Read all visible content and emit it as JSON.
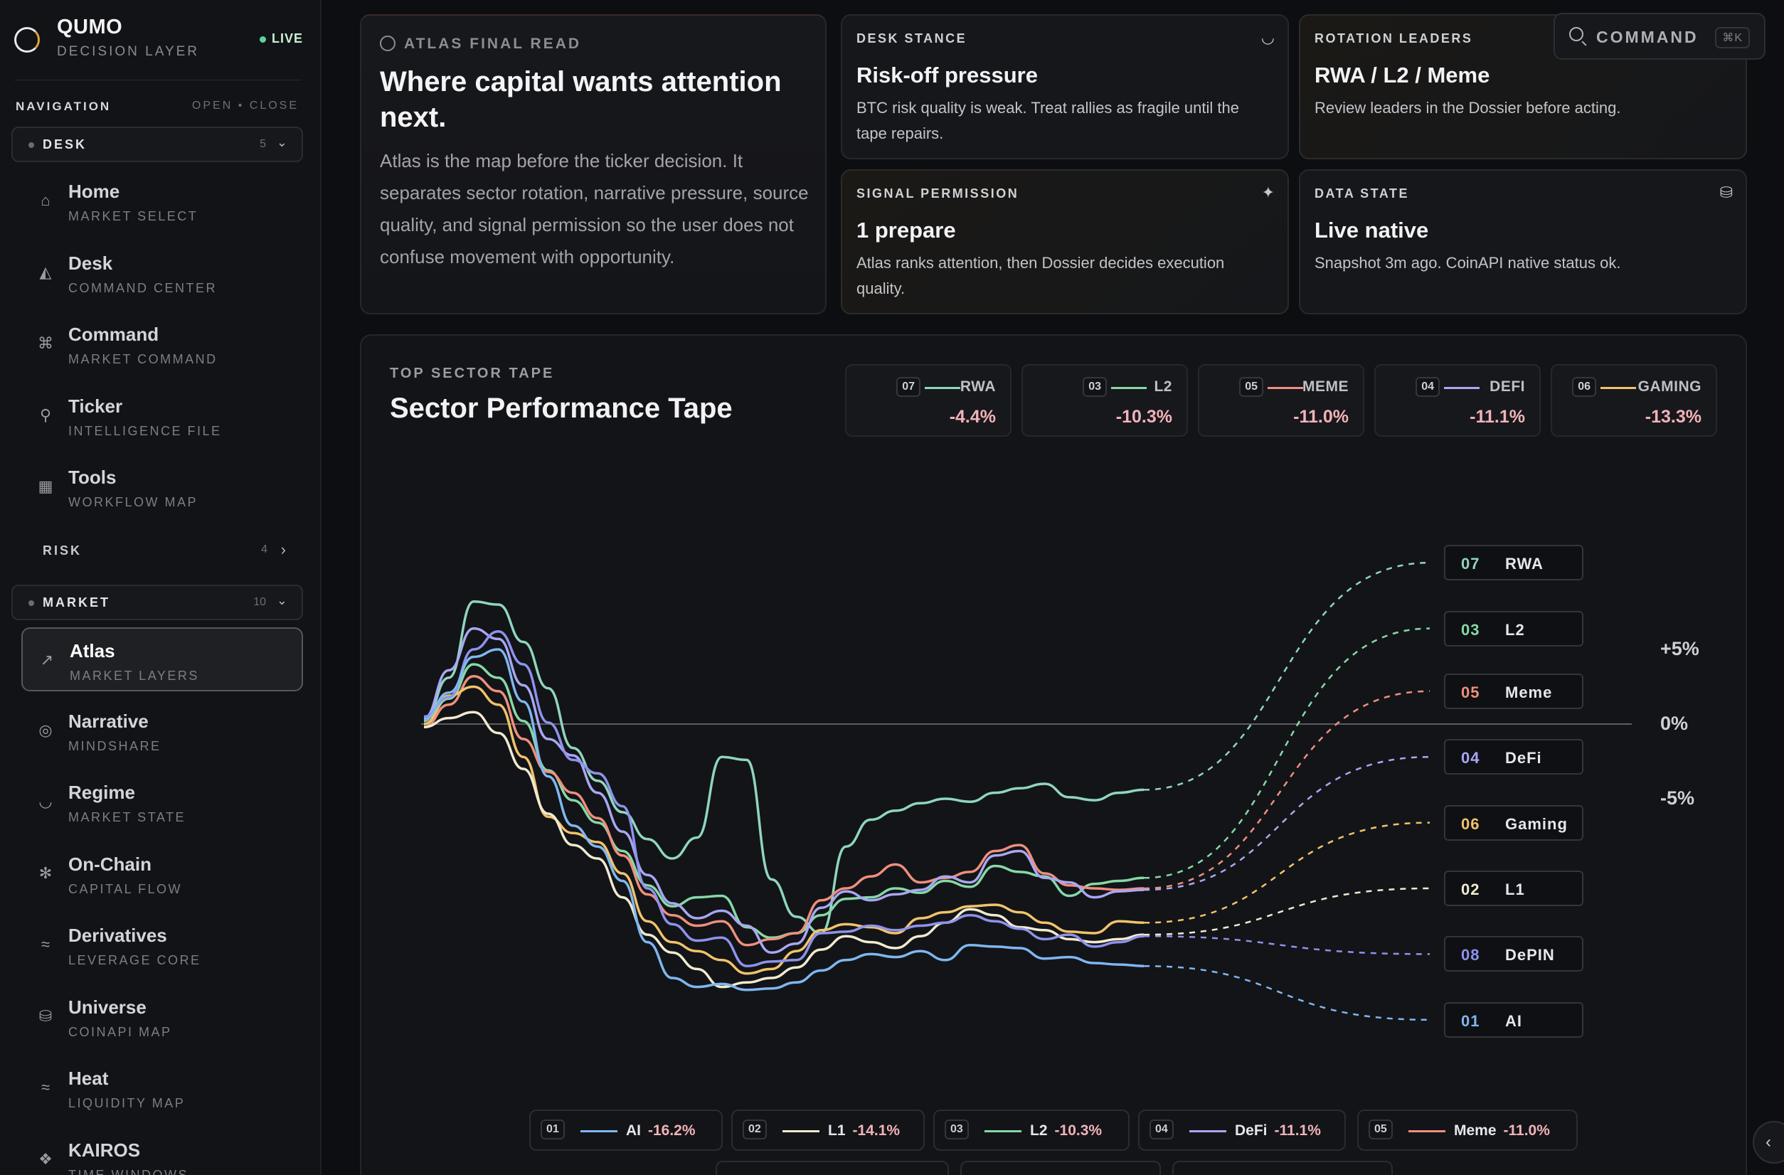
{
  "brand": {
    "name": "QUMO",
    "subtitle": "DECISION LAYER",
    "status": "LIVE"
  },
  "nav": {
    "title": "NAVIGATION",
    "open_close": "OPEN • CLOSE",
    "groups": {
      "desk": {
        "label": "DESK",
        "count": "5"
      },
      "risk": {
        "label": "RISK",
        "count": "4"
      },
      "market": {
        "label": "MARKET",
        "count": "10"
      }
    },
    "desk_items": [
      {
        "label": "Home",
        "sub": "MARKET SELECT",
        "icon": "home-icon"
      },
      {
        "label": "Desk",
        "sub": "COMMAND CENTER",
        "icon": "inbox-icon"
      },
      {
        "label": "Command",
        "sub": "MARKET COMMAND",
        "icon": "command-icon"
      },
      {
        "label": "Ticker",
        "sub": "INTELLIGENCE FILE",
        "icon": "search-icon"
      },
      {
        "label": "Tools",
        "sub": "WORKFLOW MAP",
        "icon": "grid-icon"
      }
    ],
    "market_items": [
      {
        "label": "Atlas",
        "sub": "MARKET LAYERS",
        "icon": "chart-line-icon",
        "active": true
      },
      {
        "label": "Narrative",
        "sub": "MINDSHARE",
        "icon": "radar-icon"
      },
      {
        "label": "Regime",
        "sub": "MARKET STATE",
        "icon": "gauge-icon"
      },
      {
        "label": "On-Chain",
        "sub": "CAPITAL FLOW",
        "icon": "antenna-icon"
      },
      {
        "label": "Derivatives",
        "sub": "LEVERAGE CORE",
        "icon": "waves-icon"
      },
      {
        "label": "Universe",
        "sub": "COINAPI MAP",
        "icon": "database-icon"
      },
      {
        "label": "Heat",
        "sub": "LIQUIDITY MAP",
        "icon": "waves-icon"
      },
      {
        "label": "KAIROS",
        "sub": "TIME WINDOWS",
        "icon": "target-icon"
      }
    ]
  },
  "hero": {
    "kicker": "ATLAS FINAL READ",
    "title": "Where capital wants attention next.",
    "body": "Atlas is the map before the ticker decision. It separates sector rotation, narrative pressure, source quality, and signal permission so the user does not confuse movement with opportunity."
  },
  "cards": {
    "desk_stance": {
      "label": "DESK STANCE",
      "title": "Risk-off pressure",
      "text": "BTC risk quality is weak. Treat rallies as fragile until the tape repairs.",
      "icon": "gauge-icon"
    },
    "rotation": {
      "label": "ROTATION LEADERS",
      "title": "RWA / L2 / Meme",
      "text": "Review leaders in the Dossier before acting."
    },
    "signal": {
      "label": "SIGNAL PERMISSION",
      "title": "1 prepare",
      "text": "Atlas ranks attention, then Dossier decides execution quality.",
      "icon": "sparkles-icon"
    },
    "data_state": {
      "label": "DATA STATE",
      "title": "Live native",
      "text": "Snapshot 3m ago. CoinAPI native status ok.",
      "icon": "database-icon"
    }
  },
  "command": {
    "label": "COMMAND",
    "shortcut": "⌘K"
  },
  "tape": {
    "kicker": "TOP SECTOR TAPE",
    "title": "Sector Performance Tape",
    "leaders": [
      {
        "num": "07",
        "name": "RWA",
        "value": "-4.4%",
        "color": "#8fd6bd"
      },
      {
        "num": "03",
        "name": "L2",
        "value": "-10.3%",
        "color": "#86d9a6"
      },
      {
        "num": "05",
        "name": "MEME",
        "value": "-11.0%",
        "color": "#ef8f7e"
      },
      {
        "num": "04",
        "name": "DEFI",
        "value": "-11.1%",
        "color": "#a9a7f3"
      },
      {
        "num": "06",
        "name": "GAMING",
        "value": "-13.3%",
        "color": "#f1c36b"
      }
    ]
  },
  "chart_data": {
    "type": "line",
    "y_ticks": [
      "+5%",
      "0%",
      "-5%"
    ],
    "series": [
      {
        "num": "07",
        "name": "RWA",
        "color": "#8fd6bd",
        "values": [
          0.2,
          3.1,
          8.2,
          8.0,
          5.5,
          2.4,
          -1.6,
          -3.8,
          -5.9,
          -7.7,
          -9.0,
          -7.6,
          -2.2,
          -2.4,
          -10.4,
          -12.9,
          -14.0,
          -8.2,
          -6.4,
          -5.8,
          -5.3,
          -5.0,
          -5.2,
          -4.6,
          -4.3,
          -4.0,
          -4.9,
          -5.1,
          -4.6,
          -4.4
        ],
        "proj_end": 10.8
      },
      {
        "num": "03",
        "name": "L2",
        "color": "#86d9a6",
        "values": [
          0.0,
          1.7,
          4.0,
          3.1,
          0.2,
          -3.1,
          -5.1,
          -6.6,
          -8.5,
          -10.8,
          -12.2,
          -11.6,
          -11.5,
          -13.6,
          -14.3,
          -14.0,
          -12.8,
          -11.7,
          -11.6,
          -11.0,
          -11.3,
          -10.5,
          -10.9,
          -9.5,
          -9.9,
          -10.2,
          -11.5,
          -10.7,
          -10.5,
          -10.3
        ],
        "proj_end": 6.4
      },
      {
        "num": "05",
        "name": "Meme",
        "color": "#ef8f7e",
        "values": [
          -0.2,
          1.3,
          3.2,
          2.2,
          -1.0,
          -3.2,
          -4.6,
          -6.3,
          -8.8,
          -11.4,
          -12.8,
          -13.5,
          -13.2,
          -14.8,
          -14.4,
          -14.0,
          -11.8,
          -11.0,
          -10.2,
          -9.4,
          -10.6,
          -10.3,
          -9.9,
          -8.5,
          -8.1,
          -10.0,
          -10.8,
          -11.0,
          -11.1,
          -11.0
        ],
        "proj_end": 2.2
      },
      {
        "num": "04",
        "name": "DeFi",
        "color": "#a9a7f3",
        "values": [
          0.4,
          3.6,
          6.4,
          5.7,
          2.6,
          -1.0,
          -2.1,
          -4.6,
          -7.2,
          -10.1,
          -12.0,
          -13.0,
          -12.5,
          -13.5,
          -15.3,
          -14.7,
          -12.3,
          -11.2,
          -11.8,
          -11.4,
          -11.1,
          -10.2,
          -10.6,
          -8.8,
          -8.5,
          -10.3,
          -10.6,
          -11.6,
          -11.2,
          -11.1
        ],
        "proj_end": -2.2
      },
      {
        "num": "06",
        "name": "Gaming",
        "color": "#f1c36b",
        "values": [
          0.0,
          1.9,
          2.5,
          1.3,
          -2.2,
          -6.2,
          -7.3,
          -7.9,
          -10.0,
          -13.2,
          -14.6,
          -15.2,
          -15.8,
          -16.7,
          -16.4,
          -15.2,
          -13.8,
          -13.4,
          -13.6,
          -14.0,
          -13.0,
          -12.6,
          -12.2,
          -12.1,
          -12.6,
          -13.3,
          -13.9,
          -14.0,
          -13.2,
          -13.3
        ],
        "proj_end": -6.6
      },
      {
        "num": "02",
        "name": "L1",
        "color": "#f0ead0",
        "values": [
          -0.2,
          0.4,
          0.8,
          -0.6,
          -3.0,
          -6.0,
          -8.1,
          -9.0,
          -11.6,
          -14.1,
          -15.3,
          -16.4,
          -17.6,
          -17.3,
          -17.0,
          -16.3,
          -15.1,
          -14.2,
          -14.6,
          -15.0,
          -14.2,
          -13.3,
          -12.4,
          -12.8,
          -13.6,
          -13.8,
          -14.4,
          -14.6,
          -14.4,
          -14.1
        ],
        "proj_end": -11.0
      },
      {
        "num": "08",
        "name": "DePIN",
        "color": "#8e93ec",
        "values": [
          0.5,
          1.8,
          5.0,
          6.2,
          4.0,
          0.1,
          -2.4,
          -3.3,
          -5.5,
          -11.0,
          -13.4,
          -14.5,
          -14.3,
          -16.2,
          -15.9,
          -15.8,
          -14.0,
          -13.9,
          -13.5,
          -13.8,
          -13.5,
          -13.3,
          -12.8,
          -13.2,
          -13.7,
          -14.4,
          -14.1,
          -14.9,
          -14.6,
          -14.2
        ],
        "proj_end": -15.4
      },
      {
        "num": "01",
        "name": "AI",
        "color": "#7fb7f0",
        "values": [
          0.3,
          2.1,
          4.5,
          5.0,
          1.5,
          -3.5,
          -6.8,
          -8.2,
          -10.5,
          -14.6,
          -17.0,
          -17.6,
          -17.4,
          -17.8,
          -17.7,
          -17.3,
          -16.5,
          -15.8,
          -15.4,
          -15.6,
          -15.2,
          -15.8,
          -14.8,
          -14.9,
          -15.0,
          -15.7,
          -15.6,
          -16.0,
          -16.1,
          -16.2
        ],
        "proj_end": -19.8
      }
    ]
  },
  "legend": [
    {
      "num": "01",
      "name": "AI",
      "value": "-16.2%",
      "color": "#7fb7f0"
    },
    {
      "num": "02",
      "name": "L1",
      "value": "-14.1%",
      "color": "#f0ead0"
    },
    {
      "num": "03",
      "name": "L2",
      "value": "-10.3%",
      "color": "#86d9a6"
    },
    {
      "num": "04",
      "name": "DeFi",
      "value": "-11.1%",
      "color": "#a9a7f3"
    },
    {
      "num": "05",
      "name": "Meme",
      "value": "-11.0%",
      "color": "#ef8f7e"
    }
  ]
}
